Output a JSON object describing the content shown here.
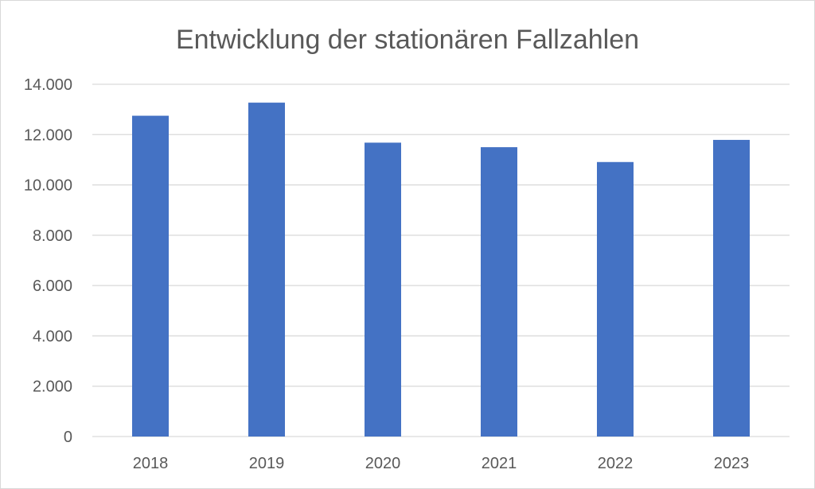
{
  "chart_data": {
    "type": "bar",
    "title": "Entwicklung der stationären Fallzahlen",
    "xlabel": "",
    "ylabel": "",
    "categories": [
      "2018",
      "2019",
      "2020",
      "2021",
      "2022",
      "2023"
    ],
    "values": [
      12750,
      13270,
      11680,
      11500,
      10910,
      11790
    ],
    "ylim": [
      0,
      14000
    ],
    "yticks": [
      0,
      2000,
      4000,
      6000,
      8000,
      10000,
      12000,
      14000
    ],
    "ytick_labels": [
      "0",
      "2.000",
      "4.000",
      "6.000",
      "8.000",
      "10.000",
      "12.000",
      "14.000"
    ],
    "grid": true,
    "legend": "none",
    "colors": {
      "bar": "#4472c4",
      "grid": "#d9d9d9",
      "text": "#595959"
    }
  }
}
